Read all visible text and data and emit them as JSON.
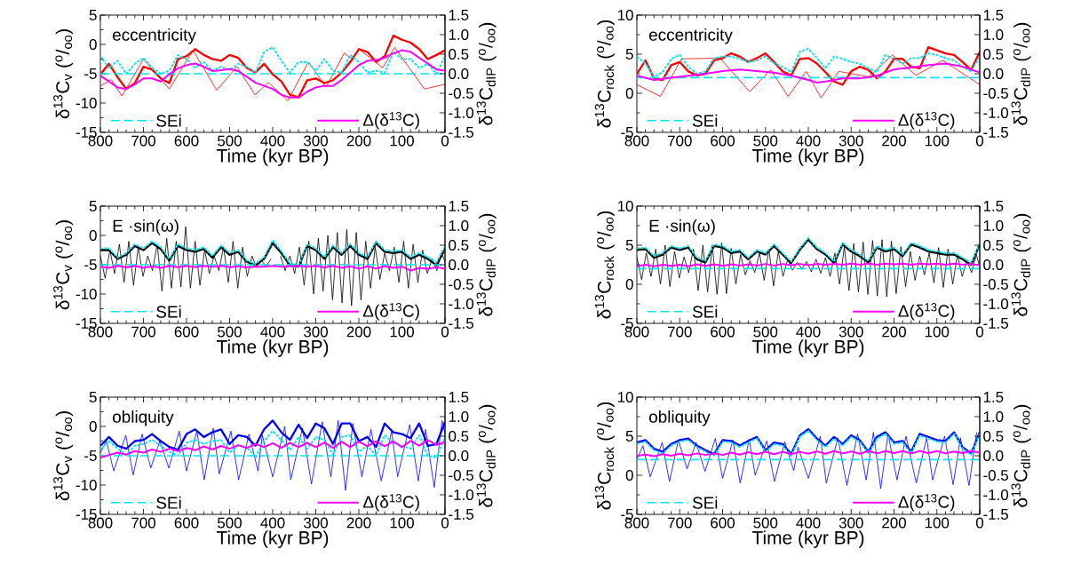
{
  "chart_data": [
    {
      "type": "line",
      "annotations": [
        "eccentricity"
      ],
      "xlabel": "Time (kyr BP)",
      "ylabel": "δ$^{13}$C$_{v}$ ($^{o}$/$_{oo}$)",
      "y2label": "δ$^{13}$C$_{dIP}$ ($^{o}$/$_{oo}$)",
      "xlim": [
        800,
        0
      ],
      "xticks": [
        800,
        700,
        600,
        500,
        400,
        300,
        200,
        100,
        0
      ],
      "ylim": [
        -15,
        5
      ],
      "yticks": [
        -15,
        -10,
        -5,
        0,
        5
      ],
      "y2lim": [
        -1.5,
        1.5
      ],
      "y2ticks": [
        -1.5,
        {
          "value": -1.0,
          "label": "-1.0"
        },
        -0.5,
        {
          "value": 0,
          "label": "0.0"
        },
        0.5,
        {
          "value": 1.0,
          "label": "1.0"
        },
        1.5
      ],
      "legend": "bottom",
      "x": [
        800,
        780,
        760,
        740,
        720,
        700,
        680,
        660,
        640,
        620,
        600,
        580,
        560,
        540,
        520,
        500,
        480,
        460,
        440,
        420,
        400,
        380,
        360,
        340,
        320,
        300,
        280,
        260,
        240,
        220,
        200,
        180,
        160,
        140,
        120,
        100,
        80,
        60,
        40,
        20,
        0
      ],
      "series": [
        {
          "color": "#ff0000",
          "line_style": "solid",
          "values": [
            -5.1,
            -3.3,
            -5.6,
            -7.6,
            -6.6,
            -3.8,
            -4.3,
            -5.8,
            -6.6,
            -2.5,
            -2.0,
            -0.8,
            -1.8,
            -2.5,
            -2.8,
            -1.8,
            -2.3,
            -4.0,
            -4.8,
            -3.3,
            -5.1,
            -6.3,
            -8.6,
            -9.0,
            -6.1,
            -5.8,
            -6.6,
            -6.1,
            -4.8,
            -3.0,
            -0.8,
            -1.3,
            -3.0,
            -2.0,
            1.5,
            0.8,
            0.3,
            -0.8,
            -2.5,
            -1.8,
            -1.0
          ]
        },
        {
          "color": "#ff0000",
          "line_style": "solid",
          "x": [
            800,
            775,
            750,
            700,
            640,
            585,
            530,
            483,
            441,
            410,
            365,
            317,
            276,
            234,
            215,
            200,
            145,
            117,
            48,
            0
          ],
          "values": [
            -7.1,
            -6.0,
            -8.8,
            -2.5,
            -7.6,
            -1.0,
            -7.8,
            -3.8,
            -8.6,
            -6.5,
            -9.6,
            -3.0,
            -7.3,
            -1.5,
            -2.5,
            -0.8,
            -4.0,
            -0.5,
            -7.6,
            -6.8
          ]
        },
        {
          "color": "#00e6f0",
          "line_style": "dotted",
          "values": [
            -2.0,
            -4.0,
            -2.8,
            -5.0,
            -3.3,
            -2.3,
            -4.0,
            -5.0,
            -4.5,
            -1.8,
            -2.5,
            -4.0,
            -3.0,
            -4.5,
            -3.8,
            -4.3,
            -3.3,
            -3.8,
            -4.8,
            -1.3,
            -0.5,
            -2.8,
            -4.8,
            -3.0,
            -3.0,
            -4.5,
            -2.5,
            -4.5,
            -4.8,
            -1.8,
            -3.0,
            -4.8,
            -4.5,
            -4.8,
            -1.3,
            -2.5,
            -2.5,
            -4.0,
            -3.3,
            -5.0,
            -2.0
          ]
        },
        {
          "name": "SEi",
          "color": "#00e6f0",
          "line_style": "dashed",
          "x": [
            800,
            0
          ],
          "values": [
            -5,
            -5
          ]
        },
        {
          "name": "Δ(δ$^{13}$C)",
          "color": "#ff00ff",
          "line_style": "solid",
          "axis": "y2",
          "values": [
            -0.05,
            -0.2,
            -0.35,
            -0.39,
            -0.27,
            -0.12,
            -0.12,
            -0.2,
            -0.01,
            0.14,
            0.22,
            0.26,
            0.18,
            0.07,
            0.09,
            0.12,
            0.07,
            -0.08,
            -0.23,
            -0.31,
            -0.39,
            -0.54,
            -0.61,
            -0.61,
            -0.46,
            -0.35,
            -0.31,
            -0.31,
            -0.16,
            0.03,
            0.22,
            0.33,
            0.35,
            0.41,
            0.52,
            0.6,
            0.56,
            0.41,
            0.26,
            0.11,
            0.08
          ]
        }
      ]
    },
    {
      "type": "line",
      "annotations": [
        "eccentricity"
      ],
      "xlabel": "Time (kyr BP)",
      "ylabel": "δ$^{13}$C$_{rock}$ ($^{o}$/$_{oo}$)",
      "y2label": "δ$^{13}$C$_{dIP}$ ($^{o}$/$_{oo}$)",
      "xlim": [
        800,
        0
      ],
      "xticks": [
        800,
        700,
        600,
        500,
        400,
        300,
        200,
        100,
        0
      ],
      "ylim": [
        -5,
        10
      ],
      "yticks": [
        -5,
        0,
        5,
        10
      ],
      "y2lim": [
        -1.5,
        1.5
      ],
      "y2ticks": [
        -1.5,
        {
          "value": -1.0,
          "label": "-1.0"
        },
        -0.5,
        {
          "value": 0,
          "label": "0.0"
        },
        0.5,
        {
          "value": 1.0,
          "label": "1.0"
        },
        1.5
      ],
      "legend": "bottom",
      "x": [
        800,
        780,
        760,
        740,
        720,
        700,
        680,
        660,
        640,
        620,
        600,
        580,
        560,
        540,
        520,
        500,
        480,
        460,
        440,
        420,
        400,
        380,
        360,
        340,
        320,
        300,
        280,
        260,
        240,
        220,
        200,
        180,
        160,
        140,
        120,
        100,
        80,
        60,
        40,
        20,
        0
      ],
      "series": [
        {
          "color": "#ff0000",
          "line_style": "solid",
          "values": [
            2.5,
            4.2,
            1.9,
            1.7,
            3.6,
            4.0,
            2.8,
            2.3,
            2.5,
            4.2,
            4.5,
            5.1,
            4.7,
            4.0,
            4.5,
            5.1,
            4.0,
            2.8,
            2.3,
            4.4,
            4.5,
            3.8,
            2.7,
            1.5,
            1.1,
            2.8,
            3.4,
            3.0,
            1.9,
            2.8,
            4.4,
            4.4,
            3.4,
            3.2,
            5.9,
            5.5,
            5.1,
            4.9,
            4.0,
            3.0,
            5.3
          ]
        },
        {
          "color": "#ff0000",
          "line_style": "solid",
          "x": [
            800,
            745,
            696,
            606,
            537,
            488,
            447,
            405,
            370,
            329,
            259,
            204,
            149,
            86,
            0
          ],
          "values": [
            1.1,
            -0.4,
            4.4,
            4.5,
            0.2,
            3.0,
            -0.4,
            2.8,
            -0.6,
            2.8,
            2.1,
            4.9,
            2.3,
            4.2,
            1.1
          ]
        },
        {
          "color": "#00e6f0",
          "line_style": "dotted",
          "values": [
            4.7,
            3.8,
            2.1,
            2.7,
            4.4,
            4.9,
            3.4,
            2.5,
            2.8,
            4.5,
            4.7,
            4.7,
            4.4,
            4.0,
            4.2,
            4.7,
            3.8,
            3.4,
            2.7,
            5.3,
            5.7,
            4.5,
            3.2,
            4.7,
            4.4,
            4.0,
            3.8,
            3.2,
            2.7,
            4.9,
            4.4,
            3.8,
            4.5,
            4.5,
            5.1,
            4.9,
            4.5,
            4.2,
            3.4,
            2.8,
            4.7
          ]
        },
        {
          "name": "SEi",
          "color": "#00e6f0",
          "line_style": "dashed",
          "x": [
            800,
            0
          ],
          "values": [
            2,
            2
          ]
        },
        {
          "name": "Δ(δ$^{13}$C)",
          "color": "#ff00ff",
          "line_style": "solid",
          "axis": "y2",
          "x": [
            800,
            760,
            720,
            680,
            640,
            600,
            560,
            520,
            480,
            440,
            400,
            380,
            360,
            320,
            280,
            240,
            200,
            160,
            120,
            80,
            40,
            0
          ],
          "values": [
            -0.05,
            -0.16,
            -0.1,
            -0.05,
            0,
            0.07,
            0.11,
            0.07,
            0.03,
            -0.05,
            -0.16,
            -0.23,
            -0.2,
            -0.12,
            -0.12,
            -0.05,
            0.11,
            0.16,
            0.22,
            0.26,
            0.18,
            0.03
          ]
        }
      ]
    },
    {
      "type": "line",
      "annotations": [
        "E ·sin(ω)"
      ],
      "xlabel": "Time (kyr BP)",
      "ylabel": "δ$^{13}$C$_{v}$ ($^{o}$/$_{oo}$)",
      "y2label": "δ$^{13}$C$_{dIP}$ ($^{o}$/$_{oo}$)",
      "xlim": [
        800,
        0
      ],
      "xticks": [
        800,
        700,
        600,
        500,
        400,
        300,
        200,
        100,
        0
      ],
      "ylim": [
        -15,
        5
      ],
      "yticks": [
        -15,
        -10,
        -5,
        0,
        5
      ],
      "y2lim": [
        -1.5,
        1.5
      ],
      "y2ticks": [
        -1.5,
        {
          "value": -1.0,
          "label": "-1.0"
        },
        -0.5,
        {
          "value": 0,
          "label": "0.0"
        },
        0.5,
        {
          "value": 1.0,
          "label": "1.0"
        },
        1.5
      ],
      "legend": "bottom",
      "x": [
        800,
        780,
        760,
        740,
        720,
        700,
        680,
        660,
        640,
        620,
        600,
        580,
        560,
        540,
        520,
        500,
        480,
        460,
        440,
        420,
        400,
        380,
        360,
        340,
        320,
        300,
        280,
        260,
        240,
        220,
        200,
        180,
        160,
        140,
        120,
        100,
        80,
        60,
        40,
        20,
        0
      ],
      "series": [
        {
          "color": "#000000",
          "line_style": "solid",
          "values": [
            -2.5,
            -2.5,
            -4.0,
            -3.3,
            -1.8,
            -2.5,
            -1.3,
            -2.3,
            -4.3,
            -1.8,
            -2.5,
            -2.8,
            -2.3,
            -3.8,
            -2.0,
            -3.3,
            -2.8,
            -4.5,
            -5.1,
            -4.0,
            -1.3,
            -3.0,
            -5.1,
            -5.3,
            -1.8,
            -2.5,
            -4.0,
            -2.0,
            -3.3,
            -1.8,
            -3.3,
            -4.0,
            -1.3,
            -2.8,
            -3.0,
            -2.8,
            -4.0,
            -3.3,
            -4.0,
            -5.1,
            -2.3
          ]
        },
        {
          "color": "#000000",
          "line_style": "solid",
          "x": [
            800,
            789,
            778,
            767,
            756,
            745,
            734,
            723,
            712,
            701,
            690,
            679,
            668,
            657,
            646,
            635,
            624,
            613,
            602,
            591,
            580,
            569,
            558,
            547,
            536,
            525,
            514,
            503,
            492,
            481,
            470,
            459,
            448,
            437,
            426,
            415,
            404,
            393,
            382,
            371,
            360,
            349,
            338,
            327,
            316,
            305,
            294,
            283,
            272,
            261,
            250,
            239,
            228,
            217,
            206,
            195,
            184,
            173,
            162,
            151,
            140,
            129,
            118,
            107,
            96,
            85,
            74,
            63,
            52,
            41,
            30,
            19,
            8,
            0
          ],
          "values": [
            -3.5,
            -7.3,
            -2.5,
            -6.5,
            -1.5,
            -8.0,
            -1.0,
            -8.5,
            -2.0,
            -7.0,
            -3.5,
            -6.0,
            -1.5,
            -9.5,
            -0.5,
            -9.0,
            -1.0,
            -8.8,
            1.5,
            -9.0,
            -1.0,
            -8.5,
            -2.5,
            -6.5,
            -3.5,
            -6.0,
            -2.0,
            -8.0,
            -1.0,
            -9.0,
            -2.0,
            -7.0,
            -3.5,
            -5.5,
            -4.3,
            -5.3,
            -4.0,
            null,
            -3.5,
            -6.0,
            -3.5,
            -6.5,
            -2.0,
            -8.5,
            -1.0,
            -10.0,
            -0.5,
            -9.5,
            0.0,
            -11.0,
            0.5,
            -11.5,
            1.0,
            -12.0,
            0.5,
            -11.0,
            -1.0,
            -9.0,
            -2.0,
            -7.5,
            -3.0,
            -6.0,
            -2.0,
            -8.0,
            -1.0,
            -9.0,
            -1.5,
            -8.0,
            -2.5,
            -6.5,
            -4.0,
            -6.0,
            -3.0,
            -4.5
          ]
        },
        {
          "color": "#00e6f0",
          "line_style": "dotted",
          "values": [
            -2.2,
            -2.2,
            -3.8,
            -3.0,
            -1.5,
            -2.2,
            -1.0,
            -2.0,
            -4.0,
            -1.5,
            -2.2,
            -2.5,
            -2.0,
            -3.5,
            -1.7,
            -3.0,
            -2.5,
            -4.3,
            -4.8,
            -3.7,
            -0.8,
            -2.7,
            -4.8,
            -5.0,
            -1.5,
            -2.2,
            -3.7,
            -1.7,
            -3.0,
            -1.5,
            -3.0,
            -3.7,
            -1.0,
            -2.5,
            -2.7,
            -2.5,
            -3.7,
            -3.0,
            -3.7,
            -4.6,
            -1.8
          ]
        },
        {
          "name": "SEi",
          "color": "#00e6f0",
          "line_style": "dashed",
          "x": [
            800,
            0
          ],
          "values": [
            -5,
            -5
          ]
        },
        {
          "name": "Δ(δ$^{13}$C)",
          "color": "#ff00ff",
          "line_style": "solid",
          "axis": "y2",
          "values": [
            -0.05,
            -0.08,
            -0.03,
            -0.07,
            -0.03,
            -0.08,
            -0.04,
            -0.08,
            -0.03,
            -0.06,
            -0.03,
            -0.06,
            -0.03,
            -0.05,
            -0.03,
            -0.06,
            -0.04,
            -0.07,
            -0.05,
            -0.05,
            -0.03,
            -0.05,
            -0.04,
            -0.03,
            -0.05,
            -0.03,
            -0.07,
            -0.03,
            -0.08,
            -0.04,
            -0.1,
            -0.04,
            -0.1,
            -0.04,
            -0.08,
            -0.05,
            -0.15,
            -0.08,
            -0.11,
            -0.06,
            -0.1
          ]
        }
      ]
    },
    {
      "type": "line",
      "annotations": [
        "E ·sin(ω)"
      ],
      "xlabel": "Time (kyr BP)",
      "ylabel": "δ$^{13}$C$_{rock}$ ($^{o}$/$_{oo}$)",
      "y2label": "δ$^{13}$C$_{dIP}$ ($^{o}$/$_{oo}$)",
      "xlim": [
        800,
        0
      ],
      "xticks": [
        800,
        700,
        600,
        500,
        400,
        300,
        200,
        100,
        0
      ],
      "ylim": [
        -5,
        10
      ],
      "yticks": [
        -5,
        0,
        5,
        10
      ],
      "y2lim": [
        -1.5,
        1.5
      ],
      "y2ticks": [
        -1.5,
        {
          "value": -1.0,
          "label": "-1.0"
        },
        -0.5,
        {
          "value": 0,
          "label": "0.0"
        },
        0.5,
        {
          "value": 1.0,
          "label": "1.0"
        },
        1.5
      ],
      "legend": "bottom",
      "x": [
        800,
        780,
        760,
        740,
        720,
        700,
        680,
        660,
        640,
        620,
        600,
        580,
        560,
        540,
        520,
        500,
        480,
        460,
        440,
        420,
        400,
        380,
        360,
        340,
        320,
        300,
        280,
        260,
        240,
        220,
        200,
        180,
        160,
        140,
        120,
        100,
        80,
        60,
        40,
        20,
        0
      ],
      "series": [
        {
          "color": "#000000",
          "line_style": "solid",
          "values": [
            4.4,
            4.5,
            3.4,
            3.8,
            4.7,
            4.4,
            4.7,
            3.2,
            2.8,
            4.9,
            4.7,
            4.0,
            4.2,
            3.2,
            4.2,
            3.8,
            4.9,
            3.8,
            2.7,
            4.4,
            5.7,
            4.5,
            3.8,
            2.7,
            5.1,
            4.2,
            3.6,
            2.8,
            4.7,
            4.2,
            4.5,
            3.6,
            5.1,
            4.7,
            4.2,
            4.0,
            3.8,
            3.8,
            3.2,
            2.5,
            5.1
          ]
        },
        {
          "color": "#000000",
          "line_style": "solid",
          "x": [
            800,
            789,
            778,
            767,
            756,
            745,
            734,
            723,
            712,
            701,
            690,
            679,
            668,
            657,
            646,
            635,
            624,
            613,
            602,
            591,
            580,
            569,
            558,
            547,
            536,
            525,
            514,
            503,
            492,
            481,
            470,
            459,
            448,
            437,
            426,
            415,
            404,
            393,
            382,
            371,
            360,
            349,
            338,
            327,
            316,
            305,
            294,
            283,
            272,
            261,
            250,
            239,
            228,
            217,
            206,
            195,
            184,
            173,
            162,
            151,
            140,
            129,
            118,
            107,
            96,
            85,
            74,
            63,
            52,
            41,
            30,
            19,
            8,
            0
          ],
          "values": [
            3.5,
            0.6,
            4.0,
            1.0,
            4.5,
            0.0,
            5.0,
            -0.3,
            4.2,
            0.8,
            3.5,
            1.5,
            4.5,
            -0.8,
            5.0,
            -1.0,
            5.0,
            -1.3,
            5.3,
            -1.2,
            4.6,
            0.0,
            3.8,
            1.2,
            3.0,
            1.5,
            4.0,
            0.5,
            4.5,
            -0.2,
            4.2,
            1.0,
            3.2,
            1.8,
            2.8,
            2.0,
            2.9,
            1.6,
            3.2,
            1.4,
            3.4,
            1.0,
            4.0,
            0.0,
            4.8,
            -0.8,
            5.2,
            -1.0,
            5.4,
            -1.3,
            5.6,
            -1.5,
            5.7,
            -1.6,
            5.5,
            -1.2,
            4.8,
            -0.3,
            4.2,
            0.5,
            3.6,
            1.2,
            4.0,
            0.2,
            4.7,
            -0.4,
            4.5,
            0.0,
            3.8,
            1.0,
            3.0,
            1.5,
            3.8,
            2.2
          ]
        },
        {
          "color": "#00e6f0",
          "line_style": "dotted",
          "values": [
            4.6,
            4.7,
            3.6,
            4.0,
            4.9,
            4.6,
            4.9,
            3.4,
            3.0,
            5.1,
            4.9,
            4.2,
            4.4,
            3.4,
            4.4,
            4.0,
            5.1,
            4.0,
            2.9,
            4.6,
            5.9,
            4.7,
            4.0,
            2.9,
            5.3,
            4.4,
            3.8,
            3.0,
            4.9,
            4.4,
            4.7,
            3.8,
            5.3,
            4.9,
            4.4,
            4.2,
            4.0,
            4.0,
            3.4,
            2.7,
            5.3
          ]
        },
        {
          "name": "SEi",
          "color": "#00e6f0",
          "line_style": "dashed",
          "x": [
            800,
            0
          ],
          "values": [
            2,
            2
          ]
        },
        {
          "name": "Δ(δ$^{13}$C)",
          "color": "#ff00ff",
          "line_style": "solid",
          "axis": "y2",
          "values": [
            -0.04,
            0.0,
            -0.04,
            0.0,
            -0.03,
            0.0,
            -0.04,
            0.01,
            -0.03,
            0.01,
            -0.03,
            0.01,
            -0.02,
            0.01,
            -0.02,
            0.02,
            -0.02,
            0.02,
            -0.01,
            0.02,
            -0.01,
            0.02,
            0.0,
            0.02,
            0.0,
            0.03,
            0.0,
            0.03,
            0.0,
            0.03,
            0.01,
            0.03,
            0.0,
            0.03,
            0.01,
            0.03,
            0.0,
            0.03,
            0.0,
            0.02,
            -0.02
          ]
        }
      ]
    },
    {
      "type": "line",
      "annotations": [
        "obliquity"
      ],
      "xlabel": "Time (kyr BP)",
      "ylabel": "δ$^{13}$C$_{v}$ ($^{o}$/$_{oo}$)",
      "y2label": "δ$^{13}$C$_{dIP}$ ($^{o}$/$_{oo}$)",
      "xlim": [
        800,
        0
      ],
      "xticks": [
        800,
        700,
        600,
        500,
        400,
        300,
        200,
        100,
        0
      ],
      "ylim": [
        -15,
        5
      ],
      "yticks": [
        -15,
        -10,
        -5,
        0,
        5
      ],
      "y2lim": [
        -1.5,
        1.5
      ],
      "y2ticks": [
        -1.5,
        {
          "value": -1.0,
          "label": "-1.0"
        },
        -0.5,
        {
          "value": 0,
          "label": "0.0"
        },
        0.5,
        {
          "value": 1.0,
          "label": "1.0"
        },
        1.5
      ],
      "legend": "bottom",
      "x": [
        800,
        780,
        760,
        740,
        720,
        700,
        680,
        660,
        640,
        620,
        600,
        580,
        560,
        540,
        520,
        500,
        480,
        460,
        440,
        420,
        400,
        380,
        360,
        340,
        320,
        300,
        280,
        260,
        240,
        220,
        200,
        180,
        160,
        140,
        120,
        100,
        80,
        60,
        40,
        20,
        0
      ],
      "series": [
        {
          "color": "#0000ff",
          "line_style": "solid",
          "values": [
            -3.3,
            -1.8,
            -3.3,
            -3.8,
            -2.5,
            -2.3,
            -1.3,
            -2.5,
            -3.5,
            -4.0,
            -1.3,
            -0.5,
            -1.8,
            -1.0,
            -0.5,
            -3.0,
            -1.5,
            -1.8,
            -3.3,
            -0.5,
            1.0,
            -1.0,
            -2.3,
            0.3,
            -2.0,
            0.5,
            -0.3,
            -3.0,
            0.5,
            0.5,
            -2.5,
            -1.8,
            -3.5,
            0.5,
            -1.0,
            -1.3,
            -2.0,
            0.5,
            -3.3,
            -3.0,
            0.8
          ]
        },
        {
          "color": "#0000ff",
          "line_style": "solid",
          "x": [
            800,
            786,
            769,
            741,
            724,
            703,
            683,
            662,
            641,
            617,
            600,
            576,
            559,
            538,
            524,
            497,
            479,
            455,
            434,
            424,
            400,
            372,
            358,
            331,
            310,
            285,
            265,
            248,
            231,
            214,
            193,
            172,
            148,
            124,
            110,
            82,
            62,
            45,
            25,
            7,
            0
          ],
          "values": [
            -4.5,
            -2.5,
            -7.6,
            -1.5,
            -8.3,
            -1.3,
            -7.1,
            -2.5,
            -7.1,
            -0.8,
            -7.6,
            -0.8,
            -9.1,
            -0.3,
            -8.1,
            -0.8,
            -9.1,
            -1.3,
            -7.6,
            -1.5,
            -8.6,
            0.0,
            -9.1,
            -0.3,
            -9.8,
            0.8,
            -8.6,
            1.0,
            -10.9,
            0.5,
            -8.6,
            -0.5,
            -9.3,
            -0.8,
            -8.6,
            0.3,
            -9.3,
            -0.5,
            -10.4,
            1.0,
            -1.3
          ]
        },
        {
          "color": "#00e6f0",
          "line_style": "dotted",
          "values": [
            -4.0,
            -2.5,
            -3.8,
            -4.8,
            -3.3,
            -3.0,
            -2.3,
            -3.3,
            -4.3,
            -5.0,
            -2.8,
            -2.3,
            -3.0,
            -2.5,
            -2.3,
            -4.5,
            -3.3,
            -3.5,
            -5.3,
            -2.5,
            -0.8,
            -2.3,
            -4.0,
            -1.8,
            -3.8,
            -1.8,
            -2.3,
            -4.8,
            -1.8,
            -1.5,
            -4.3,
            -3.3,
            -5.0,
            -1.5,
            -2.8,
            -3.3,
            -3.8,
            -1.5,
            -5.0,
            -5.3,
            -1.8
          ]
        },
        {
          "name": "SEi",
          "color": "#00e6f0",
          "line_style": "dashed",
          "x": [
            800,
            0
          ],
          "values": [
            -5,
            -5
          ]
        },
        {
          "name": "Δ(δ$^{13}$C)",
          "color": "#ff00ff",
          "line_style": "solid",
          "axis": "y2",
          "values": [
            -0.05,
            0.02,
            0.08,
            0.03,
            0.12,
            0.08,
            0.16,
            0.1,
            0.18,
            0.12,
            0.2,
            0.14,
            0.24,
            0.16,
            0.25,
            0.18,
            0.27,
            0.2,
            0.3,
            0.22,
            0.32,
            0.2,
            0.33,
            0.22,
            0.33,
            0.22,
            0.34,
            0.2,
            0.36,
            0.22,
            0.36,
            0.24,
            0.37,
            0.24,
            0.37,
            0.22,
            0.38,
            0.26,
            0.4,
            0.28,
            0.35
          ]
        }
      ]
    },
    {
      "type": "line",
      "annotations": [
        "obliquity"
      ],
      "xlabel": "Time (kyr BP)",
      "ylabel": "δ$^{13}$C$_{rock}$ ($^{o}$/$_{oo}$)",
      "y2label": "δ$^{13}$C$_{dIP}$ ($^{o}$/$_{oo}$)",
      "xlim": [
        800,
        0
      ],
      "xticks": [
        800,
        700,
        600,
        500,
        400,
        300,
        200,
        100,
        0
      ],
      "ylim": [
        -5,
        10
      ],
      "yticks": [
        -5,
        0,
        5,
        10
      ],
      "y2lim": [
        -1.5,
        1.5
      ],
      "y2ticks": [
        -1.5,
        {
          "value": -1.0,
          "label": "-1.0"
        },
        -0.5,
        {
          "value": 0,
          "label": "0.0"
        },
        0.5,
        {
          "value": 1.0,
          "label": "1.0"
        },
        1.5
      ],
      "legend": "bottom",
      "x": [
        800,
        780,
        760,
        740,
        720,
        700,
        680,
        660,
        640,
        620,
        600,
        580,
        560,
        540,
        520,
        500,
        480,
        460,
        440,
        420,
        400,
        380,
        360,
        340,
        320,
        300,
        280,
        260,
        240,
        220,
        200,
        180,
        160,
        140,
        120,
        100,
        80,
        60,
        40,
        20,
        0
      ],
      "series": [
        {
          "color": "#0000ff",
          "line_style": "solid",
          "values": [
            4.2,
            4.5,
            3.4,
            3.0,
            4.0,
            4.5,
            4.7,
            3.8,
            3.2,
            2.7,
            4.5,
            4.4,
            3.8,
            4.4,
            4.9,
            3.2,
            4.2,
            4.0,
            2.7,
            5.1,
            5.9,
            4.7,
            3.8,
            4.9,
            4.0,
            5.1,
            4.5,
            3.0,
            4.9,
            5.5,
            4.2,
            4.4,
            3.0,
            5.3,
            4.9,
            4.5,
            4.4,
            5.5,
            3.6,
            2.8,
            5.5
          ]
        },
        {
          "color": "#0000ff",
          "line_style": "solid",
          "x": [
            800,
            786,
            769,
            741,
            724,
            703,
            683,
            662,
            641,
            617,
            600,
            576,
            559,
            538,
            524,
            497,
            479,
            455,
            434,
            424,
            400,
            372,
            358,
            331,
            310,
            285,
            265,
            248,
            231,
            214,
            193,
            172,
            148,
            124,
            110,
            82,
            62,
            45,
            25,
            7
          ],
          "values": [
            2.0,
            3.8,
            -0.2,
            4.2,
            -0.8,
            4.5,
            0.8,
            4.2,
            0.5,
            4.7,
            -0.4,
            4.5,
            -1.0,
            4.6,
            0.0,
            4.4,
            -0.8,
            4.3,
            0.6,
            3.6,
            -0.4,
            5.0,
            -1.0,
            4.8,
            -1.3,
            5.3,
            -0.6,
            5.5,
            -1.7,
            5.3,
            -0.6,
            5.0,
            -1.0,
            4.8,
            -0.6,
            5.0,
            -1.2,
            4.8,
            -1.3,
            5.5
          ]
        },
        {
          "color": "#00e6f0",
          "line_style": "dotted",
          "values": [
            4.0,
            4.3,
            3.2,
            2.8,
            3.8,
            4.3,
            4.5,
            3.6,
            3.0,
            2.5,
            4.3,
            4.2,
            3.6,
            4.2,
            4.7,
            3.0,
            4.0,
            3.8,
            2.5,
            4.9,
            5.7,
            4.5,
            3.6,
            4.7,
            3.8,
            4.9,
            4.3,
            2.8,
            4.7,
            5.3,
            4.0,
            4.2,
            2.8,
            5.1,
            4.7,
            4.3,
            4.2,
            5.3,
            3.4,
            2.6,
            5.3
          ]
        },
        {
          "name": "SEi",
          "color": "#00e6f0",
          "line_style": "dashed",
          "x": [
            800,
            0
          ],
          "values": [
            2,
            2
          ]
        },
        {
          "name": "Δ(δ$^{13}$C)",
          "color": "#ff00ff",
          "line_style": "solid",
          "axis": "y2",
          "values": [
            0.0,
            0.03,
            -0.01,
            0.04,
            0.0,
            0.05,
            0.01,
            0.06,
            0.02,
            0.06,
            0.02,
            0.08,
            0.03,
            0.09,
            0.04,
            0.1,
            0.04,
            0.1,
            0.04,
            0.1,
            0.05,
            0.11,
            0.05,
            0.12,
            0.06,
            0.11,
            0.05,
            0.12,
            0.06,
            0.12,
            0.07,
            0.12,
            0.06,
            0.12,
            0.07,
            0.12,
            0.06,
            0.11,
            0.07,
            0.12,
            0.08
          ]
        }
      ]
    }
  ]
}
